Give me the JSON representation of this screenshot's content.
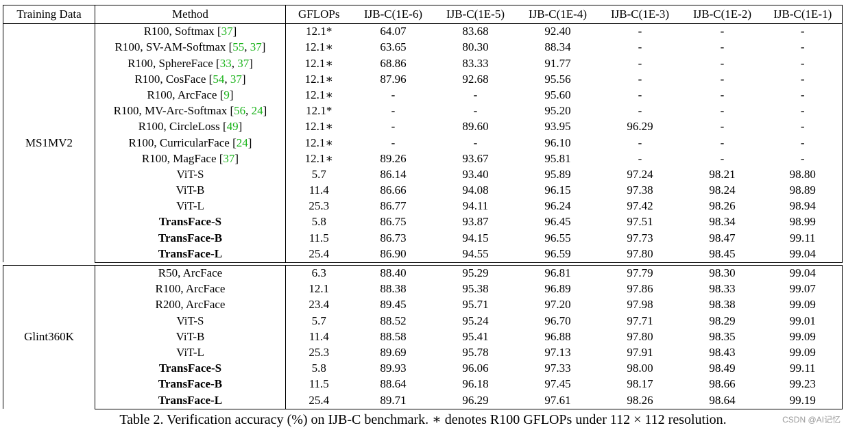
{
  "table": {
    "headers": [
      "Training Data",
      "Method",
      "GFLOPs",
      "IJB-C(1E-6)",
      "IJB-C(1E-5)",
      "IJB-C(1E-4)",
      "IJB-C(1E-3)",
      "IJB-C(1E-2)",
      "IJB-C(1E-1)"
    ],
    "groups": [
      {
        "name": "MS1MV2",
        "rows": [
          {
            "method": "R100, Softmax",
            "cites": [
              "37"
            ],
            "gflops": "12.1*",
            "values": [
              "64.07",
              "83.68",
              "92.40",
              "-",
              "-",
              "-"
            ],
            "bold_method": false,
            "bold_cells": []
          },
          {
            "method": "R100, SV-AM-Softmax",
            "cites": [
              "55",
              "37"
            ],
            "gflops": "12.1∗",
            "values": [
              "63.65",
              "80.30",
              "88.34",
              "-",
              "-",
              "-"
            ],
            "bold_method": false,
            "bold_cells": []
          },
          {
            "method": "R100, SphereFace",
            "cites": [
              "33",
              "37"
            ],
            "gflops": "12.1∗",
            "values": [
              "68.86",
              "83.33",
              "91.77",
              "-",
              "-",
              "-"
            ],
            "bold_method": false,
            "bold_cells": []
          },
          {
            "method": "R100, CosFace",
            "cites": [
              "54",
              "37"
            ],
            "gflops": "12.1∗",
            "values": [
              "87.96",
              "92.68",
              "95.56",
              "-",
              "-",
              "-"
            ],
            "bold_method": false,
            "bold_cells": []
          },
          {
            "method": "R100, ArcFace",
            "cites": [
              "9"
            ],
            "gflops": "12.1∗",
            "values": [
              "-",
              "-",
              "95.60",
              "-",
              "-",
              "-"
            ],
            "bold_method": false,
            "bold_cells": []
          },
          {
            "method": "R100, MV-Arc-Softmax",
            "cites": [
              "56",
              "24"
            ],
            "gflops": "12.1*",
            "values": [
              "-",
              "-",
              "95.20",
              "-",
              "-",
              "-"
            ],
            "bold_method": false,
            "bold_cells": []
          },
          {
            "method": "R100, CircleLoss",
            "cites": [
              "49"
            ],
            "gflops": "12.1∗",
            "values": [
              "-",
              "89.60",
              "93.95",
              "96.29",
              "-",
              "-"
            ],
            "bold_method": false,
            "bold_cells": []
          },
          {
            "method": "R100, CurricularFace",
            "cites": [
              "24"
            ],
            "gflops": "12.1∗",
            "values": [
              "-",
              "-",
              "96.10",
              "-",
              "-",
              "-"
            ],
            "bold_method": false,
            "bold_cells": []
          },
          {
            "method": "R100, MagFace",
            "cites": [
              "37"
            ],
            "gflops": "12.1∗",
            "values": [
              "89.26",
              "93.67",
              "95.81",
              "-",
              "-",
              "-"
            ],
            "bold_method": false,
            "bold_cells": [
              0
            ]
          },
          {
            "method": "ViT-S",
            "cites": [],
            "gflops": "5.7",
            "values": [
              "86.14",
              "93.40",
              "95.89",
              "97.24",
              "98.21",
              "98.80"
            ],
            "bold_method": false,
            "bold_cells": []
          },
          {
            "method": "ViT-B",
            "cites": [],
            "gflops": "11.4",
            "values": [
              "86.66",
              "94.08",
              "96.15",
              "97.38",
              "98.24",
              "98.89"
            ],
            "bold_method": false,
            "bold_cells": []
          },
          {
            "method": "ViT-L",
            "cites": [],
            "gflops": "25.3",
            "values": [
              "86.77",
              "94.11",
              "96.24",
              "97.42",
              "98.26",
              "98.94"
            ],
            "bold_method": false,
            "bold_cells": []
          },
          {
            "method": "TransFace-S",
            "cites": [],
            "gflops": "5.8",
            "values": [
              "86.75",
              "93.87",
              "96.45",
              "97.51",
              "98.34",
              "98.99"
            ],
            "bold_method": true,
            "bold_cells": []
          },
          {
            "method": "TransFace-B",
            "cites": [],
            "gflops": "11.5",
            "values": [
              "86.73",
              "94.15",
              "96.55",
              "97.73",
              "98.47",
              "99.11"
            ],
            "bold_method": true,
            "bold_cells": [
              4,
              5
            ]
          },
          {
            "method": "TransFace-L",
            "cites": [],
            "gflops": "25.4",
            "values": [
              "86.90",
              "94.55",
              "96.59",
              "97.80",
              "98.45",
              "99.04"
            ],
            "bold_method": true,
            "bold_cells": [
              1,
              2,
              3
            ]
          }
        ]
      },
      {
        "name": "Glint360K",
        "rows": [
          {
            "method": "R50, ArcFace",
            "cites": [],
            "gflops": "6.3",
            "values": [
              "88.40",
              "95.29",
              "96.81",
              "97.79",
              "98.30",
              "99.04"
            ],
            "bold_method": false,
            "bold_cells": []
          },
          {
            "method": "R100, ArcFace",
            "cites": [],
            "gflops": "12.1",
            "values": [
              "88.38",
              "95.38",
              "96.89",
              "97.86",
              "98.33",
              "99.07"
            ],
            "bold_method": false,
            "bold_cells": []
          },
          {
            "method": "R200, ArcFace",
            "cites": [],
            "gflops": "23.4",
            "values": [
              "89.45",
              "95.71",
              "97.20",
              "97.98",
              "98.38",
              "99.09"
            ],
            "bold_method": false,
            "bold_cells": []
          },
          {
            "method": "ViT-S",
            "cites": [],
            "gflops": "5.7",
            "values": [
              "88.52",
              "95.24",
              "96.70",
              "97.71",
              "98.29",
              "99.01"
            ],
            "bold_method": false,
            "bold_cells": []
          },
          {
            "method": "ViT-B",
            "cites": [],
            "gflops": "11.4",
            "values": [
              "88.58",
              "95.41",
              "96.88",
              "97.80",
              "98.35",
              "99.09"
            ],
            "bold_method": false,
            "bold_cells": []
          },
          {
            "method": "ViT-L",
            "cites": [],
            "gflops": "25.3",
            "values": [
              "89.69",
              "95.78",
              "97.13",
              "97.91",
              "98.43",
              "99.09"
            ],
            "bold_method": false,
            "bold_cells": []
          },
          {
            "method": "TransFace-S",
            "cites": [],
            "gflops": "5.8",
            "values": [
              "89.93",
              "96.06",
              "97.33",
              "98.00",
              "98.49",
              "99.11"
            ],
            "bold_method": true,
            "bold_cells": [
              0
            ]
          },
          {
            "method": "TransFace-B",
            "cites": [],
            "gflops": "11.5",
            "values": [
              "88.64",
              "96.18",
              "97.45",
              "98.17",
              "98.66",
              "99.23"
            ],
            "bold_method": true,
            "bold_cells": [
              4,
              5
            ]
          },
          {
            "method": "TransFace-L",
            "cites": [],
            "gflops": "25.4",
            "values": [
              "89.71",
              "96.29",
              "97.61",
              "98.26",
              "98.64",
              "99.19"
            ],
            "bold_method": true,
            "bold_cells": [
              1,
              2,
              3
            ]
          }
        ]
      }
    ]
  },
  "caption": "Table 2. Verification accuracy (%) on IJB-C benchmark. ∗ denotes R100 GFLOPs under 112 × 112 resolution.",
  "watermark": "CSDN @AI记忆",
  "colors": {
    "citation": "#19b319",
    "text": "#000000"
  }
}
